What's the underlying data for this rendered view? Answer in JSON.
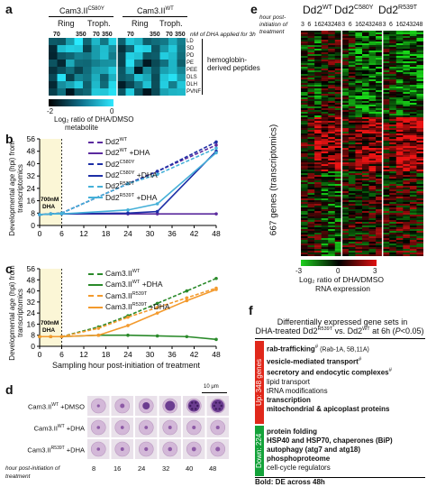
{
  "panel_a": {
    "label": "a",
    "groups": [
      "Cam3.IIᶜ⁵⁸⁰ʸ",
      "Cam3.IIʷᵀ"
    ],
    "group_c580y": "Cam3.II",
    "group_c580y_sup": "C580Y",
    "group_wt": "Cam3.II",
    "group_wt_sup": "WT",
    "stage_ring": "Ring",
    "stage_troph": "Troph.",
    "doses": [
      "70",
      "350",
      "70",
      "350",
      "70",
      "350",
      "70",
      "350"
    ],
    "dose_note": "nM of DHA applied for 3h",
    "metabolites": [
      "LD",
      "SD",
      "PD",
      "PE",
      "PEE",
      "DLS",
      "DLH",
      "PVNF"
    ],
    "row_group_label": "hemoglobin-derived peptides",
    "colorbar_min": "-2",
    "colorbar_max": "0",
    "colorbar_label": "Log₂ ratio of DHA/DMSO",
    "colorbar_sub": "metabolite"
  },
  "panel_b": {
    "label": "b",
    "ylabel": "Developmental age (hpi) from transcriptomics",
    "annotation": "700nM DHA",
    "legend": [
      {
        "name": "Dd2",
        "sup": "WT",
        "suffix": ""
      },
      {
        "name": "Dd2",
        "sup": "WT",
        "suffix": " +DHA"
      },
      {
        "name": "Dd2",
        "sup": "C580Y",
        "suffix": ""
      },
      {
        "name": "Dd2",
        "sup": "C580Y",
        "suffix": " +DHA"
      },
      {
        "name": "Dd2",
        "sup": "R539T",
        "suffix": ""
      },
      {
        "name": "Dd2",
        "sup": "R539T",
        "suffix": " +DHA"
      }
    ],
    "yticks": [
      "0",
      "8",
      "16",
      "24",
      "32",
      "40",
      "48",
      "56"
    ],
    "xticks": [
      "0",
      "6",
      "12",
      "18",
      "24",
      "30",
      "36",
      "42",
      "48"
    ]
  },
  "panel_c": {
    "label": "c",
    "ylabel": "Developmental age (hpi) from transcriptomics",
    "xlabel": "Sampling hour post-initiation of treatment",
    "annotation": "700nM DHA",
    "legend": [
      {
        "name": "Cam3.II",
        "sup": "WT",
        "suffix": ""
      },
      {
        "name": "Cam3.II",
        "sup": "WT",
        "suffix": " +DHA"
      },
      {
        "name": "Cam3.II",
        "sup": "R539T",
        "suffix": ""
      },
      {
        "name": "Cam3.II",
        "sup": "R539T",
        "suffix": " +DHA"
      }
    ],
    "yticks": [
      "0",
      "8",
      "16",
      "24",
      "32",
      "40",
      "48",
      "56"
    ],
    "xticks": [
      "0",
      "6",
      "12",
      "18",
      "24",
      "30",
      "36",
      "42",
      "48"
    ]
  },
  "panel_d": {
    "label": "d",
    "scale": "10 μm",
    "rows": [
      {
        "name": "Cam3.II",
        "sup": "WT",
        "suffix": " +DMSO"
      },
      {
        "name": "Cam3.II",
        "sup": "WT",
        "suffix": " +DHA"
      },
      {
        "name": "Cam3.II",
        "sup": "R539T",
        "suffix": " +DHA"
      }
    ],
    "xcaption": "hour post-initiation of treatment",
    "hours": [
      "8",
      "16",
      "24",
      "32",
      "40",
      "48"
    ]
  },
  "panel_e": {
    "label": "e",
    "hour_caption": "hour post-initiation of treatment",
    "strains": [
      {
        "name": "Dd2",
        "sup": "WT"
      },
      {
        "name": "Dd2",
        "sup": "C580Y"
      },
      {
        "name": "Dd2",
        "sup": "R539T"
      }
    ],
    "hours": [
      "3",
      "6",
      "16",
      "24",
      "32",
      "48"
    ],
    "ylabel": "667 genes (transcriptomics)",
    "cb_min": "-3",
    "cb_mid": "0",
    "cb_max": "3",
    "cb_label": "Log₂ ratio of DHA/DMSO",
    "cb_sub": "RNA expression"
  },
  "panel_f": {
    "label": "f",
    "title1": "Differentially expressed gene sets in",
    "title2_pre": "DHA-treated Dd2",
    "title2_sup1": "R539T",
    "title2_mid": " vs. Dd2",
    "title2_sup2": "WT",
    "title2_post": " at 6h (",
    "title2_p": "P",
    "title2_end": "<0.05)",
    "up_label": "Up: 348 genes",
    "down_label": "Down: 224 genes",
    "up_items": [
      {
        "text": "rab-trafficking",
        "bold": true,
        "mark": "#",
        "extra": " (Rab-1A, 5B,11A)"
      },
      {
        "text": "vesicle-mediated transport",
        "bold": true,
        "mark": "#",
        "extra": ""
      },
      {
        "text": "secretory and endocytic complexes",
        "bold": true,
        "mark": "#",
        "extra": ""
      },
      {
        "text": "lipid transport",
        "bold": false,
        "mark": "",
        "extra": ""
      },
      {
        "text": "tRNA modifications",
        "bold": false,
        "mark": "",
        "extra": ""
      },
      {
        "text": "transcription",
        "bold": true,
        "mark": "",
        "extra": ""
      },
      {
        "text": "mitochondrial & apicoplast proteins",
        "bold": true,
        "mark": "",
        "extra": ""
      }
    ],
    "down_items": [
      {
        "text": "protein folding",
        "bold": true
      },
      {
        "text": "HSP40 and HSP70, chaperones (BiP)",
        "bold": true
      },
      {
        "text": "autophagy (atg7 and atg18)",
        "bold": true
      },
      {
        "text": "phosphoproteome",
        "bold": true
      },
      {
        "text": "cell-cycle regulators",
        "bold": false
      }
    ],
    "footnote1": "Bold: DE across 48h",
    "footnote2_pre": "# DE in DHA-treated Cam3.II",
    "footnote2_sup1": "R539T",
    "footnote2_mid": " vs Cam3.II",
    "footnote2_sup2": "WT"
  },
  "chart_data": [
    {
      "type": "line",
      "panel": "b",
      "xlabel": "",
      "ylabel": "Developmental age (hpi) from transcriptomics",
      "ylim": [
        0,
        56
      ],
      "xlim": [
        0,
        48
      ],
      "series": [
        {
          "name": "Dd2WT",
          "color": "#5b2a9e",
          "dashed": true,
          "x": [
            0,
            3,
            6,
            24,
            32,
            48
          ],
          "y": [
            7,
            7.5,
            8,
            27,
            35,
            52
          ]
        },
        {
          "name": "Dd2WT +DHA",
          "color": "#5b2a9e",
          "dashed": false,
          "x": [
            0,
            3,
            6,
            24,
            32,
            48
          ],
          "y": [
            7,
            7.5,
            7.5,
            7.5,
            7.5,
            7.5
          ]
        },
        {
          "name": "Dd2C580Y",
          "color": "#1d2fa6",
          "dashed": true,
          "x": [
            0,
            3,
            6,
            24,
            32,
            48
          ],
          "y": [
            7,
            7.5,
            8,
            27,
            35,
            54
          ]
        },
        {
          "name": "Dd2C580Y +DHA",
          "color": "#1d2fa6",
          "dashed": false,
          "x": [
            0,
            3,
            6,
            24,
            32,
            48
          ],
          "y": [
            7,
            7.5,
            7.5,
            8,
            9,
            48
          ]
        },
        {
          "name": "Dd2R539T",
          "color": "#45b0d8",
          "dashed": true,
          "x": [
            0,
            3,
            6,
            24,
            32,
            48
          ],
          "y": [
            7,
            7.5,
            8,
            27,
            33,
            50
          ]
        },
        {
          "name": "Dd2R539T +DHA",
          "color": "#45b0d8",
          "dashed": false,
          "x": [
            0,
            3,
            6,
            24,
            32,
            48
          ],
          "y": [
            7,
            7.5,
            7.5,
            10,
            14,
            47
          ]
        }
      ]
    },
    {
      "type": "line",
      "panel": "c",
      "xlabel": "Sampling hour post-initiation of treatment",
      "ylabel": "Developmental age (hpi) from transcriptomics",
      "ylim": [
        0,
        56
      ],
      "xlim": [
        0,
        48
      ],
      "series": [
        {
          "name": "Cam3.IIWT",
          "color": "#2a8a2a",
          "dashed": true,
          "x": [
            0,
            3,
            6,
            16,
            24,
            32,
            40,
            48
          ],
          "y": [
            7,
            7,
            7,
            14,
            22,
            31,
            40,
            49
          ]
        },
        {
          "name": "Cam3.IIWT +DHA",
          "color": "#2a8a2a",
          "dashed": false,
          "x": [
            0,
            3,
            6,
            16,
            24,
            32,
            40,
            48
          ],
          "y": [
            7,
            7,
            7,
            8,
            8,
            7.5,
            7,
            5
          ]
        },
        {
          "name": "Cam3.IIR539T",
          "color": "#f39a2d",
          "dashed": true,
          "x": [
            0,
            3,
            6,
            16,
            24,
            32,
            40,
            48
          ],
          "y": [
            7,
            7,
            7,
            13,
            21,
            28,
            35,
            42
          ]
        },
        {
          "name": "Cam3.IIR539T +DHA",
          "color": "#f39a2d",
          "dashed": false,
          "x": [
            0,
            3,
            6,
            16,
            24,
            32,
            40,
            48
          ],
          "y": [
            7,
            7,
            7,
            8,
            15,
            24,
            33,
            41
          ]
        }
      ]
    }
  ]
}
